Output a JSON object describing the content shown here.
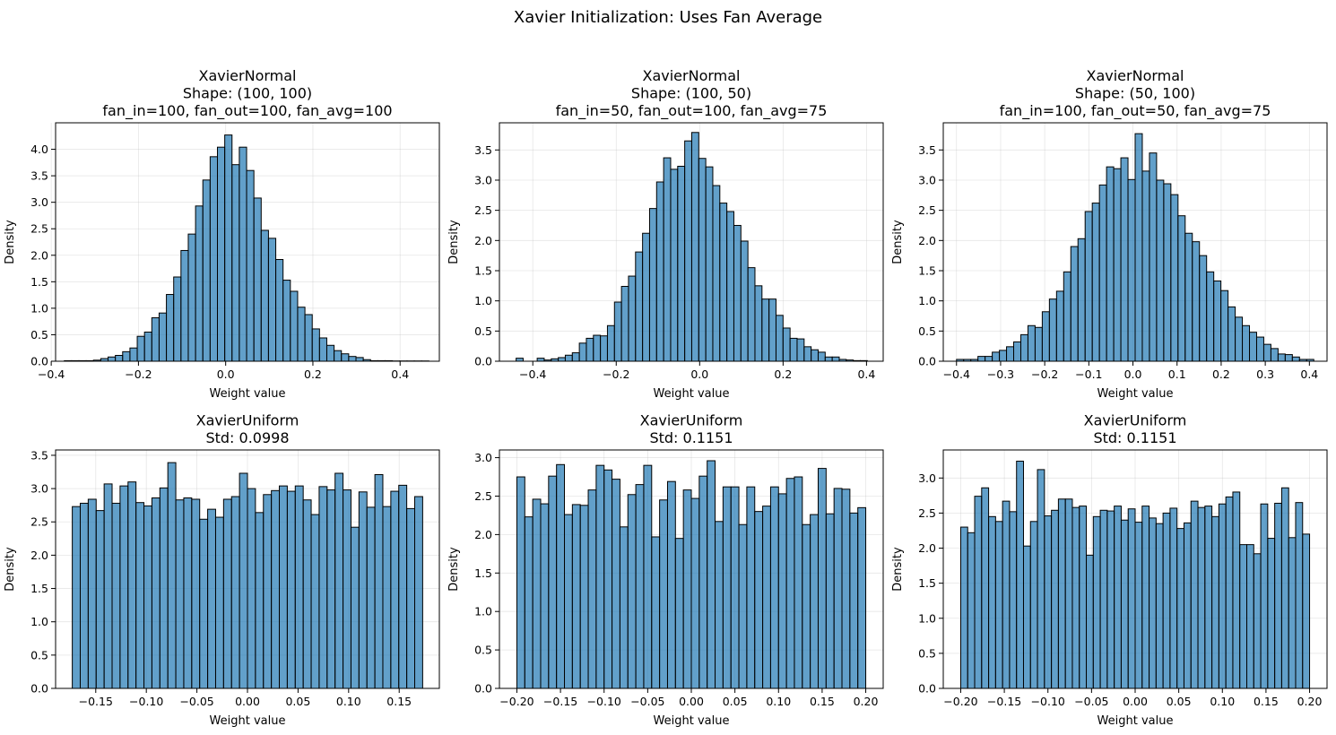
{
  "figure": {
    "suptitle": "Xavier Initialization: Uses Fan Average"
  },
  "chart_data": [
    {
      "type": "bar",
      "title": [
        "XavierNormal",
        "Shape: (100, 100)",
        "fan_in=100, fan_out=100, fan_avg=100"
      ],
      "xlabel": "Weight value",
      "ylabel": "Density",
      "xlim": [
        -0.39,
        0.49
      ],
      "ylim": [
        0,
        4.5
      ],
      "xticks": [
        -0.4,
        -0.2,
        0.0,
        0.2,
        0.4
      ],
      "xtick_labels": [
        "−0.4",
        "−0.2",
        "0.0",
        "0.2",
        "0.4"
      ],
      "yticks": [
        0,
        0.5,
        1.0,
        1.5,
        2.0,
        2.5,
        3.0,
        3.5,
        4.0
      ],
      "ytick_labels": [
        "0.0",
        "0.5",
        "1.0",
        "1.5",
        "2.0",
        "2.5",
        "3.0",
        "3.5",
        "4.0"
      ],
      "grid": true,
      "bins": {
        "start": -0.37,
        "end": 0.466
      },
      "values": [
        0.01,
        0.01,
        0.01,
        0.01,
        0.02,
        0.05,
        0.08,
        0.11,
        0.18,
        0.25,
        0.47,
        0.55,
        0.82,
        0.91,
        1.26,
        1.59,
        2.09,
        2.4,
        2.93,
        3.42,
        3.86,
        4.04,
        4.27,
        3.71,
        4.04,
        3.6,
        3.08,
        2.47,
        2.32,
        1.92,
        1.53,
        1.32,
        1.02,
        0.88,
        0.61,
        0.44,
        0.3,
        0.2,
        0.14,
        0.09,
        0.07,
        0.03,
        0.01,
        0.01,
        0.01,
        0.005,
        0.005,
        0.005,
        0.005,
        0.005
      ]
    },
    {
      "type": "bar",
      "title": [
        "XavierNormal",
        "Shape: (100, 50)",
        "fan_in=50, fan_out=100, fan_avg=75"
      ],
      "xlabel": "Weight value",
      "ylabel": "Density",
      "xlim": [
        -0.48,
        0.44
      ],
      "ylim": [
        0,
        3.95
      ],
      "xticks": [
        -0.4,
        -0.2,
        0.0,
        0.2,
        0.4
      ],
      "xtick_labels": [
        "−0.4",
        "−0.2",
        "0.0",
        "0.2",
        "0.4"
      ],
      "yticks": [
        0,
        0.5,
        1.0,
        1.5,
        2.0,
        2.5,
        3.0,
        3.5
      ],
      "ytick_labels": [
        "0.0",
        "0.5",
        "1.0",
        "1.5",
        "2.0",
        "2.5",
        "3.0",
        "3.5"
      ],
      "grid": true,
      "bins": {
        "start": -0.44,
        "end": 0.402
      },
      "values": [
        0.05,
        0.0,
        0.0,
        0.05,
        0.02,
        0.04,
        0.06,
        0.1,
        0.14,
        0.3,
        0.38,
        0.43,
        0.42,
        0.59,
        0.98,
        1.24,
        1.41,
        1.81,
        2.12,
        2.53,
        2.97,
        3.37,
        3.18,
        3.23,
        3.65,
        3.79,
        3.36,
        3.22,
        2.91,
        2.62,
        2.48,
        2.25,
        1.99,
        1.55,
        1.25,
        1.03,
        1.03,
        0.76,
        0.55,
        0.38,
        0.37,
        0.24,
        0.19,
        0.15,
        0.07,
        0.07,
        0.03,
        0.02,
        0.01,
        0.01
      ]
    },
    {
      "type": "bar",
      "title": [
        "XavierNormal",
        "Shape: (50, 100)",
        "fan_in=100, fan_out=50, fan_avg=75"
      ],
      "xlabel": "Weight value",
      "ylabel": "Density",
      "xlim": [
        -0.43,
        0.44
      ],
      "ylim": [
        0,
        3.95
      ],
      "xticks": [
        -0.4,
        -0.3,
        -0.2,
        -0.1,
        0.0,
        0.1,
        0.2,
        0.3,
        0.4
      ],
      "xtick_labels": [
        "−0.4",
        "−0.3",
        "−0.2",
        "−0.1",
        "0.0",
        "0.1",
        "0.2",
        "0.3",
        "0.4"
      ],
      "yticks": [
        0,
        0.5,
        1.0,
        1.5,
        2.0,
        2.5,
        3.0,
        3.5
      ],
      "ytick_labels": [
        "0.0",
        "0.5",
        "1.0",
        "1.5",
        "2.0",
        "2.5",
        "3.0",
        "3.5"
      ],
      "grid": true,
      "bins": {
        "start": -0.4,
        "end": 0.41
      },
      "values": [
        0.03,
        0.03,
        0.03,
        0.08,
        0.08,
        0.15,
        0.18,
        0.24,
        0.32,
        0.44,
        0.59,
        0.56,
        0.82,
        1.03,
        1.16,
        1.48,
        1.9,
        2.03,
        2.48,
        2.62,
        2.92,
        3.22,
        3.19,
        3.37,
        3.01,
        3.77,
        3.15,
        3.45,
        3.0,
        2.94,
        2.76,
        2.41,
        2.12,
        1.98,
        1.75,
        1.48,
        1.33,
        1.17,
        0.9,
        0.73,
        0.59,
        0.48,
        0.4,
        0.28,
        0.21,
        0.12,
        0.11,
        0.07,
        0.03,
        0.03
      ]
    },
    {
      "type": "bar",
      "title": [
        "XavierUniform",
        "Std: 0.0998"
      ],
      "xlabel": "Weight value",
      "ylabel": "Density",
      "xlim": [
        -0.1897,
        0.1897
      ],
      "ylim": [
        0,
        3.58
      ],
      "xticks": [
        -0.15,
        -0.1,
        -0.05,
        0.0,
        0.05,
        0.1,
        0.15
      ],
      "xtick_labels": [
        "−0.15",
        "−0.10",
        "−0.05",
        "0.00",
        "0.05",
        "0.10",
        "0.15"
      ],
      "yticks": [
        0,
        0.5,
        1.0,
        1.5,
        2.0,
        2.5,
        3.0,
        3.5
      ],
      "ytick_labels": [
        "0.0",
        "0.5",
        "1.0",
        "1.5",
        "2.0",
        "2.5",
        "3.0",
        "3.5"
      ],
      "grid": true,
      "bins": {
        "start": -0.1732,
        "end": 0.1732
      },
      "values": [
        2.73,
        2.78,
        2.84,
        2.67,
        3.07,
        2.78,
        3.04,
        3.1,
        2.79,
        2.74,
        2.86,
        3.01,
        3.39,
        2.83,
        2.86,
        2.84,
        2.54,
        2.69,
        2.57,
        2.84,
        2.88,
        3.23,
        3.0,
        2.64,
        2.91,
        2.97,
        3.04,
        2.96,
        3.04,
        2.83,
        2.61,
        3.03,
        2.98,
        3.23,
        2.98,
        2.42,
        2.95,
        2.72,
        3.21,
        2.73,
        2.96,
        3.05,
        2.7,
        2.88
      ]
    },
    {
      "type": "bar",
      "title": [
        "XavierUniform",
        "Std: 0.1151"
      ],
      "xlabel": "Weight value",
      "ylabel": "Density",
      "xlim": [
        -0.22,
        0.22
      ],
      "ylim": [
        0,
        3.1
      ],
      "xticks": [
        -0.2,
        -0.15,
        -0.1,
        -0.05,
        0.0,
        0.05,
        0.1,
        0.15,
        0.2
      ],
      "xtick_labels": [
        "−0.20",
        "−0.15",
        "−0.10",
        "−0.05",
        "0.00",
        "0.05",
        "0.10",
        "0.15",
        "0.20"
      ],
      "yticks": [
        0,
        0.5,
        1.0,
        1.5,
        2.0,
        2.5,
        3.0
      ],
      "ytick_labels": [
        "0.0",
        "0.5",
        "1.0",
        "1.5",
        "2.0",
        "2.5",
        "3.0"
      ],
      "grid": true,
      "bins": {
        "start": -0.2,
        "end": 0.2
      },
      "values": [
        2.75,
        2.23,
        2.46,
        2.4,
        2.76,
        2.91,
        2.26,
        2.39,
        2.38,
        2.58,
        2.9,
        2.84,
        2.72,
        2.1,
        2.52,
        2.65,
        2.9,
        1.97,
        2.45,
        2.69,
        1.95,
        2.58,
        2.47,
        2.76,
        2.96,
        2.17,
        2.62,
        2.62,
        2.13,
        2.62,
        2.3,
        2.37,
        2.62,
        2.53,
        2.73,
        2.75,
        2.13,
        2.26,
        2.86,
        2.27,
        2.6,
        2.59,
        2.28,
        2.35
      ]
    },
    {
      "type": "bar",
      "title": [
        "XavierUniform",
        "Std: 0.1151"
      ],
      "xlabel": "Weight value",
      "ylabel": "Density",
      "xlim": [
        -0.22,
        0.22
      ],
      "ylim": [
        0,
        3.4
      ],
      "xticks": [
        -0.2,
        -0.15,
        -0.1,
        -0.05,
        0.0,
        0.05,
        0.1,
        0.15,
        0.2
      ],
      "xtick_labels": [
        "−0.20",
        "−0.15",
        "−0.10",
        "−0.05",
        "0.00",
        "0.05",
        "0.10",
        "0.15",
        "0.20"
      ],
      "yticks": [
        0,
        0.5,
        1.0,
        1.5,
        2.0,
        2.5,
        3.0
      ],
      "ytick_labels": [
        "0.0",
        "0.5",
        "1.0",
        "1.5",
        "2.0",
        "2.5",
        "3.0"
      ],
      "grid": true,
      "bins": {
        "start": -0.2,
        "end": 0.2
      },
      "values": [
        2.3,
        2.22,
        2.74,
        2.86,
        2.45,
        2.38,
        2.67,
        2.52,
        3.24,
        2.03,
        2.38,
        3.12,
        2.46,
        2.54,
        2.7,
        2.7,
        2.58,
        2.6,
        1.9,
        2.45,
        2.54,
        2.53,
        2.6,
        2.4,
        2.56,
        2.37,
        2.6,
        2.43,
        2.35,
        2.5,
        2.57,
        2.28,
        2.36,
        2.67,
        2.58,
        2.6,
        2.45,
        2.63,
        2.73,
        2.8,
        2.05,
        2.05,
        1.92,
        2.63,
        2.14,
        2.64,
        2.86,
        2.15,
        2.65,
        2.2
      ]
    }
  ]
}
